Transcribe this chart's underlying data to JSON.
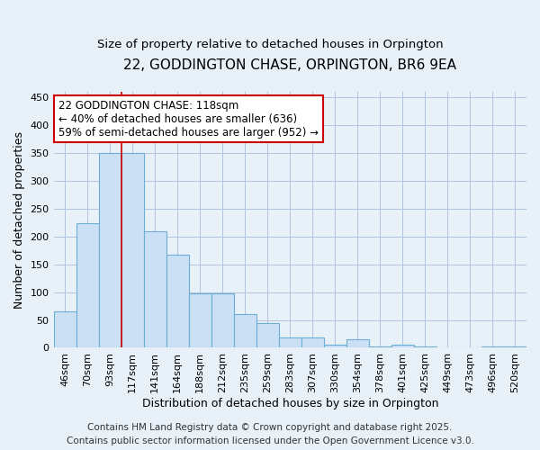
{
  "title": "22, GODDINGTON CHASE, ORPINGTON, BR6 9EA",
  "subtitle": "Size of property relative to detached houses in Orpington",
  "xlabel": "Distribution of detached houses by size in Orpington",
  "ylabel": "Number of detached properties",
  "categories": [
    "46sqm",
    "70sqm",
    "93sqm",
    "117sqm",
    "141sqm",
    "164sqm",
    "188sqm",
    "212sqm",
    "235sqm",
    "259sqm",
    "283sqm",
    "307sqm",
    "330sqm",
    "354sqm",
    "378sqm",
    "401sqm",
    "425sqm",
    "449sqm",
    "473sqm",
    "496sqm",
    "520sqm"
  ],
  "values": [
    65,
    224,
    350,
    350,
    210,
    168,
    98,
    98,
    60,
    44,
    18,
    18,
    5,
    15,
    3,
    5,
    3,
    0,
    0,
    2,
    2
  ],
  "bar_color": "#cce0f5",
  "bar_edge_color": "#6aaed6",
  "figure_bg": "#e8f0f8",
  "axes_bg": "#e8f0f8",
  "grid_color": "#b0c4de",
  "vline_x_index": 3,
  "vline_color": "#cc0000",
  "annotation_line1": "22 GODDINGTON CHASE: 118sqm",
  "annotation_line2": "← 40% of detached houses are smaller (636)",
  "annotation_line3": "59% of semi-detached houses are larger (952) →",
  "annotation_box_facecolor": "#ffffff",
  "annotation_box_edgecolor": "#cc0000",
  "ylim": [
    0,
    460
  ],
  "yticks": [
    0,
    50,
    100,
    150,
    200,
    250,
    300,
    350,
    400,
    450
  ],
  "footer_text": "Contains HM Land Registry data © Crown copyright and database right 2025.\nContains public sector information licensed under the Open Government Licence v3.0.",
  "title_fontsize": 11,
  "subtitle_fontsize": 9.5,
  "axis_label_fontsize": 9,
  "tick_fontsize": 8,
  "annotation_fontsize": 8.5,
  "footer_fontsize": 7.5
}
